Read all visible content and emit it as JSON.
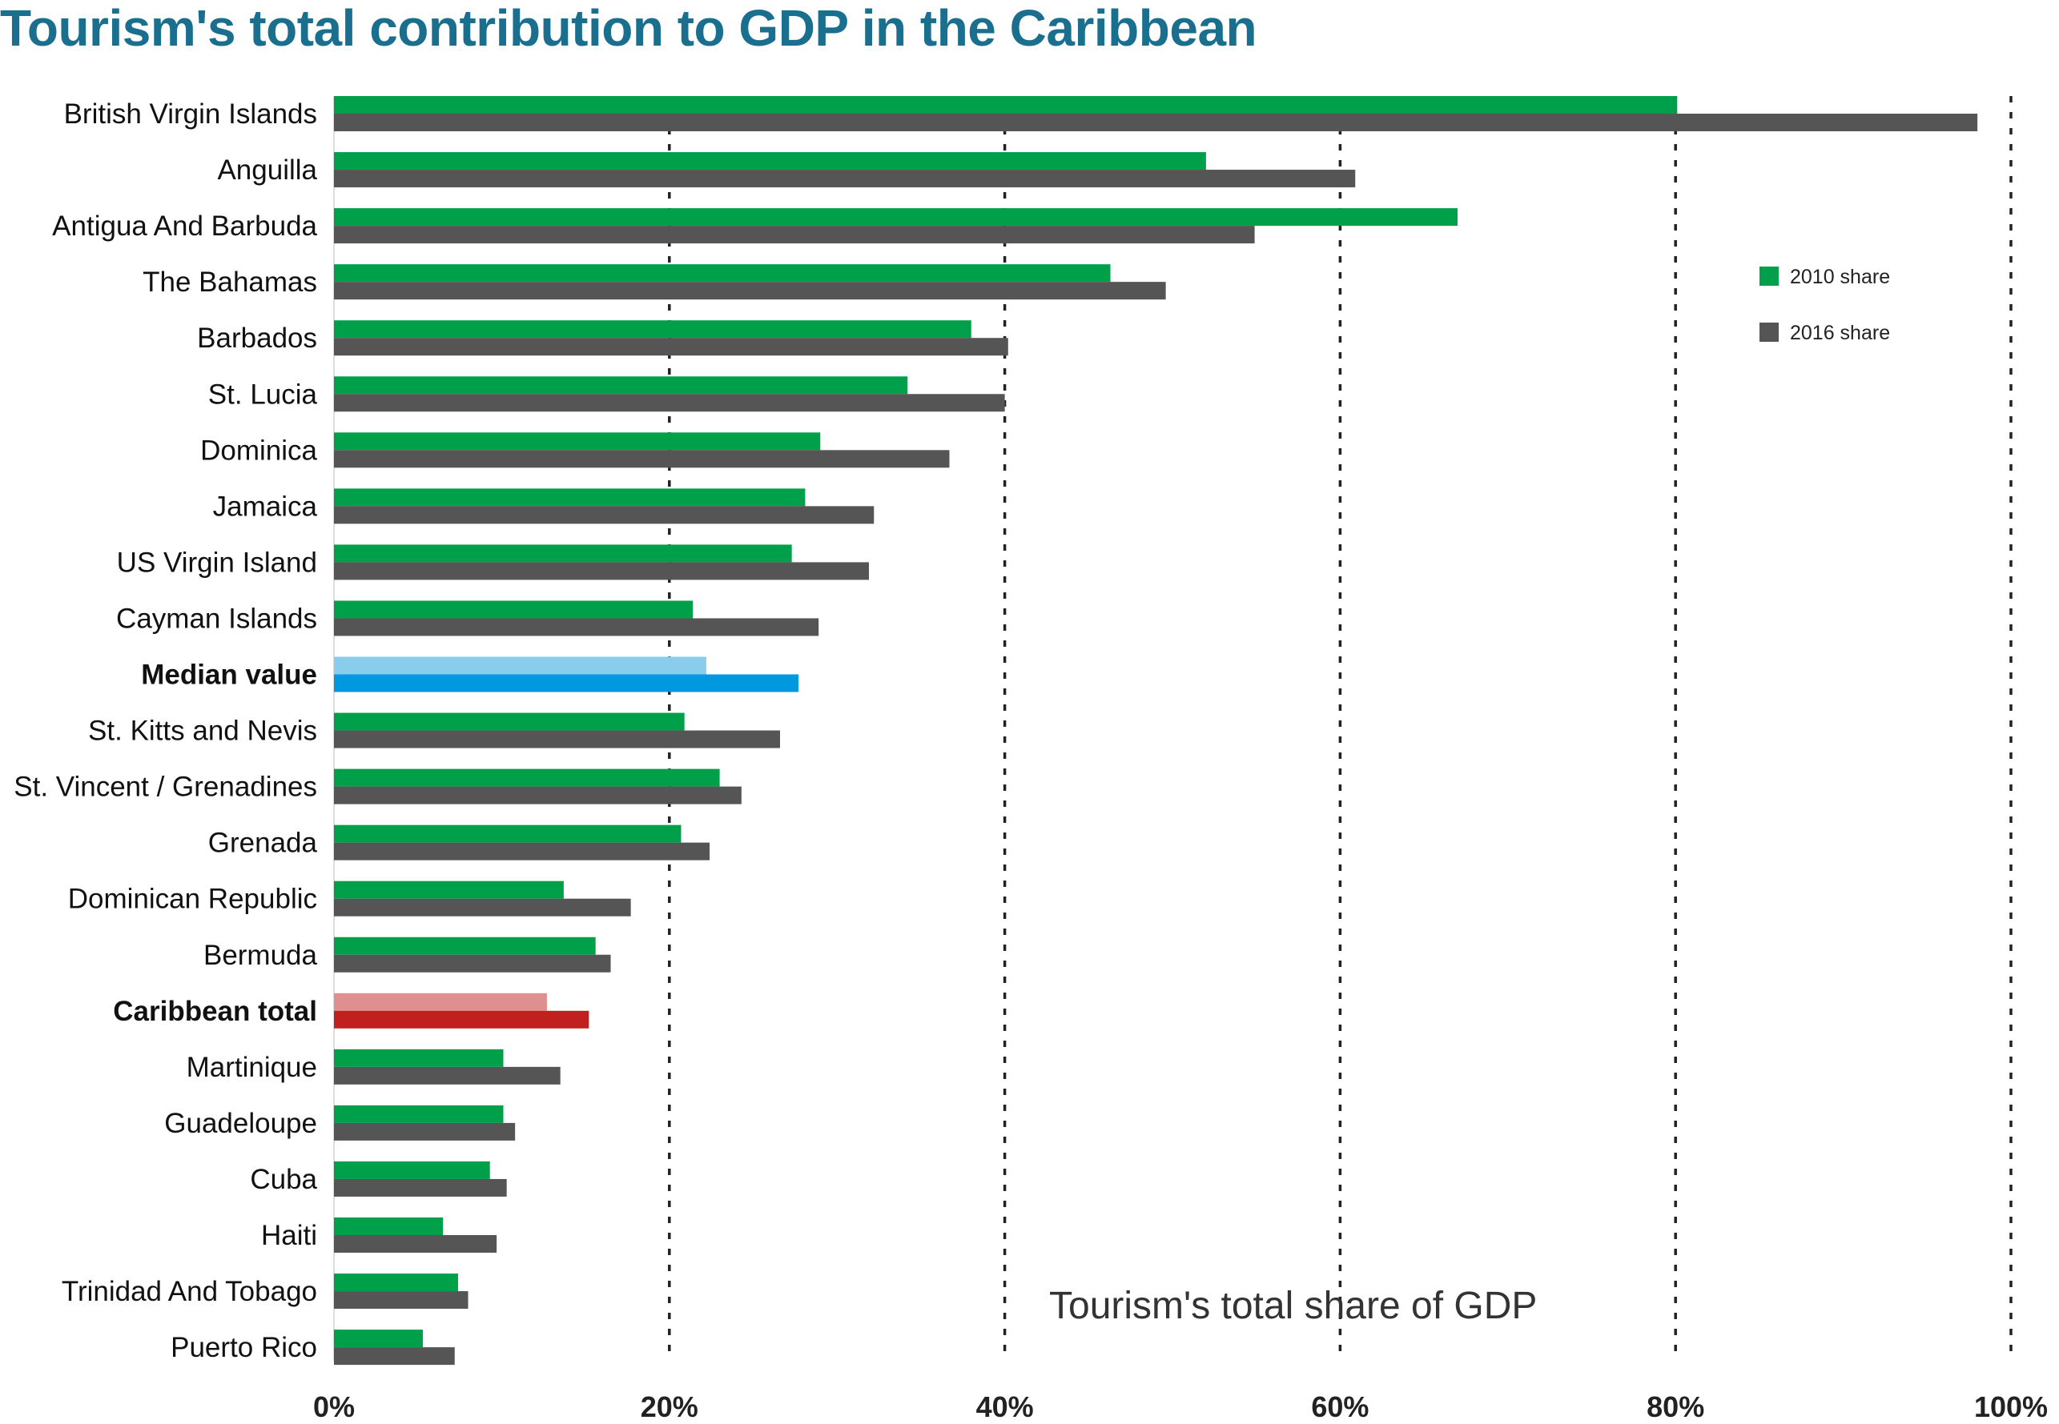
{
  "chart_data": {
    "type": "bar",
    "orientation": "horizontal",
    "title": "Tourism's total contribution to GDP in the Caribbean",
    "annotation": "Tourism's total share of GDP",
    "xlim": [
      0,
      100
    ],
    "x_ticks": [
      "0%",
      "20%",
      "40%",
      "60%",
      "80%",
      "100%"
    ],
    "grid": "vertical dotted",
    "legend_placement": "right",
    "categories": [
      "British Virgin Islands",
      "Anguilla",
      "Antigua And Barbuda",
      "The Bahamas",
      "Barbados",
      "St. Lucia",
      "Dominica",
      "Jamaica",
      "US Virgin Island",
      "Cayman Islands",
      "Median value",
      "St. Kitts and Nevis",
      "St. Vincent / Grenadines",
      "Grenada",
      "Dominican Republic",
      "Bermuda",
      "Caribbean total",
      "Martinique",
      "Guadeloupe",
      "Cuba",
      "Haiti",
      "Trinidad And Tobago",
      "Puerto Rico"
    ],
    "bold_categories": [
      "Median value",
      "Caribbean total"
    ],
    "series": [
      {
        "name": "2010 share",
        "color": "#00a04b",
        "values": [
          80.1,
          52.0,
          67.0,
          46.3,
          38.0,
          34.2,
          29.0,
          28.1,
          27.3,
          21.4,
          22.2,
          20.9,
          23.0,
          20.7,
          13.7,
          15.6,
          12.7,
          10.1,
          10.1,
          9.3,
          6.5,
          7.4,
          5.3
        ]
      },
      {
        "name": "2016 share",
        "color": "#555555",
        "values": [
          98.0,
          60.9,
          54.9,
          49.6,
          40.2,
          40.0,
          36.7,
          32.2,
          31.9,
          28.9,
          27.7,
          26.6,
          24.3,
          22.4,
          17.7,
          16.5,
          15.2,
          13.5,
          10.8,
          10.3,
          9.7,
          8.0,
          7.2
        ]
      }
    ],
    "highlight_colors": {
      "Median value": [
        "#89ccec",
        "#0099e0"
      ],
      "Caribbean total": [
        "#de9090",
        "#c1211e"
      ]
    }
  }
}
